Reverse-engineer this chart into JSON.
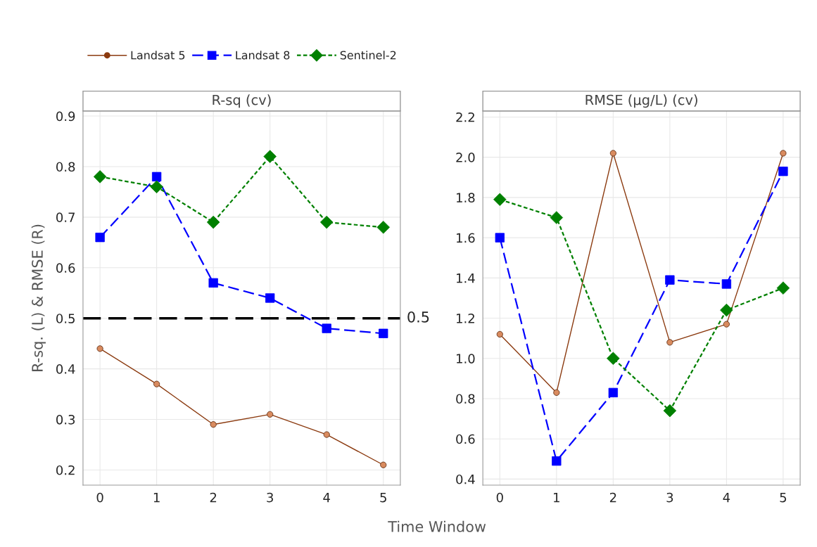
{
  "chart_data": [
    {
      "type": "line",
      "title": "R-sq (cv)",
      "xlabel": "Time Window",
      "ylabel": "R-sq. (L) & RMSE (R)",
      "x": [
        0,
        1,
        2,
        3,
        4,
        5
      ],
      "xlim": [
        -0.3,
        5.3
      ],
      "xticks": [
        0,
        1,
        2,
        3,
        4,
        5
      ],
      "ylim": [
        0.17,
        0.91
      ],
      "yticks": [
        0.2,
        0.3,
        0.4,
        0.5,
        0.6,
        0.7,
        0.8,
        0.9
      ],
      "grid": true,
      "legend": "top left",
      "series": [
        {
          "name": "Landsat 5",
          "color": "#8b3a0f",
          "marker": "circle",
          "line_style": "solid",
          "values": [
            0.44,
            0.37,
            0.29,
            0.31,
            0.27,
            0.21
          ]
        },
        {
          "name": "Landsat 8",
          "color": "#0000ff",
          "marker": "square",
          "line_style": "dashed",
          "values": [
            0.66,
            0.78,
            0.57,
            0.54,
            0.48,
            0.47
          ]
        },
        {
          "name": "Sentinel-2",
          "color": "#008000",
          "marker": "diamond",
          "line_style": "dotted",
          "values": [
            0.78,
            0.76,
            0.69,
            0.82,
            0.69,
            0.68
          ]
        }
      ],
      "ref_lines": [
        {
          "axis": "y",
          "value": 0.5,
          "label": "0.5",
          "color": "#000000",
          "line_style": "dashed"
        }
      ]
    },
    {
      "type": "line",
      "title": "RMSE (µg/L) (cv)",
      "x": [
        0,
        1,
        2,
        3,
        4,
        5
      ],
      "xlim": [
        -0.3,
        5.3
      ],
      "xticks": [
        0,
        1,
        2,
        3,
        4,
        5
      ],
      "ylim": [
        0.37,
        2.23
      ],
      "yticks": [
        0.4,
        0.6,
        0.8,
        {
          "value": 1,
          "label": "1.0"
        },
        1.2,
        1.4,
        1.6,
        1.8,
        {
          "value": 2,
          "label": "2.0"
        },
        2.2
      ],
      "grid": true,
      "series": [
        {
          "color": "#8b3a0f",
          "marker": "circle",
          "line_style": "solid",
          "values": [
            1.12,
            0.83,
            2.02,
            1.08,
            1.17,
            2.02
          ]
        },
        {
          "color": "#0000ff",
          "marker": "square",
          "line_style": "dashed",
          "values": [
            1.6,
            0.49,
            0.83,
            1.39,
            1.37,
            1.93
          ]
        },
        {
          "color": "#008000",
          "marker": "diamond",
          "line_style": "dotted",
          "values": [
            1.79,
            1.7,
            1.0,
            0.74,
            1.24,
            1.35
          ]
        }
      ]
    }
  ]
}
